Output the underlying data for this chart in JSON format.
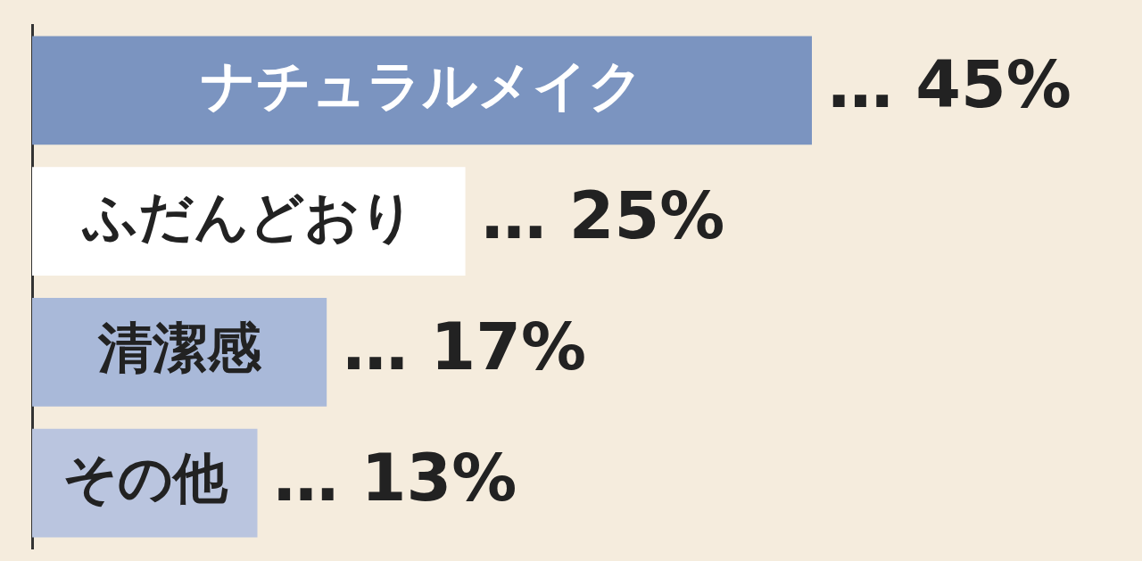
{
  "chart_data": {
    "type": "bar",
    "orientation": "horizontal",
    "categories": [
      "ナチュラルメイク",
      "ふだんどおり",
      "清潔感",
      "その他"
    ],
    "values": [
      45,
      25,
      17,
      13
    ],
    "colors": [
      "#7b94c0",
      "#ffffff",
      "#a9b9d9",
      "#bac5df"
    ],
    "value_labels": [
      "… 45%",
      "… 25%",
      "… 17%",
      "… 13%"
    ],
    "legend": false
  }
}
